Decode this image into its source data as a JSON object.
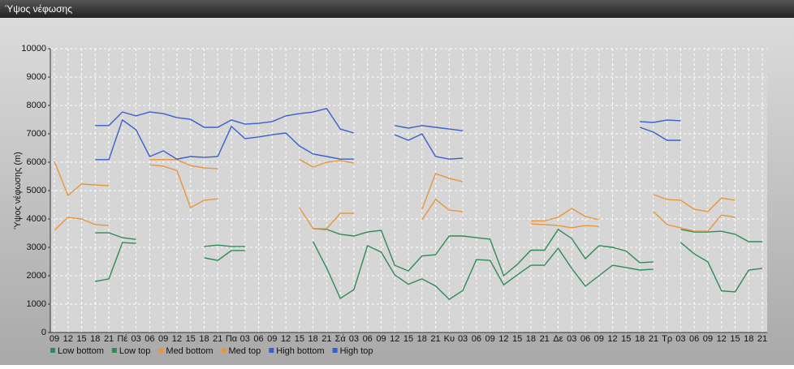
{
  "chart_data": {
    "type": "line",
    "title": "Ύψος νέφωσης",
    "ylabel": "Ύψος νέφωσης (m)",
    "categories": [
      "09",
      "12",
      "15",
      "18",
      "21",
      "Πέ",
      "03",
      "06",
      "09",
      "12",
      "15",
      "18",
      "21",
      "Πα",
      "03",
      "06",
      "09",
      "12",
      "15",
      "18",
      "21",
      "Σά",
      "03",
      "06",
      "09",
      "12",
      "15",
      "18",
      "21",
      "Κυ",
      "03",
      "06",
      "09",
      "12",
      "15",
      "18",
      "21",
      "Δε",
      "03",
      "06",
      "09",
      "12",
      "15",
      "18",
      "21",
      "Τρ",
      "03",
      "06",
      "09",
      "12",
      "15",
      "18",
      "21"
    ],
    "ylim": [
      0,
      10000
    ],
    "yticks": [
      0,
      1000,
      2000,
      3000,
      4000,
      5000,
      6000,
      7000,
      8000,
      9000,
      10000
    ],
    "grid": true,
    "series": [
      {
        "name": "Low bottom",
        "color": "#2e8b57",
        "values": [
          null,
          null,
          null,
          1800,
          1890,
          3170,
          3140,
          null,
          null,
          null,
          null,
          2630,
          2540,
          2890,
          2890,
          null,
          null,
          null,
          null,
          3200,
          2270,
          1200,
          1510,
          3060,
          2830,
          2030,
          1700,
          1890,
          1640,
          1170,
          1480,
          2570,
          2540,
          1680,
          2030,
          2370,
          2370,
          2970,
          2260,
          1630,
          2000,
          2370,
          2290,
          2200,
          2230,
          null,
          3170,
          2770,
          2490,
          1470,
          1430,
          2200,
          2260
        ]
      },
      {
        "name": "Low top",
        "color": "#2e8b57",
        "values": [
          null,
          null,
          null,
          3510,
          3510,
          3340,
          3280,
          null,
          null,
          null,
          null,
          3030,
          3080,
          3030,
          3030,
          null,
          null,
          null,
          null,
          3660,
          3630,
          3460,
          3400,
          3540,
          3600,
          2370,
          2170,
          2700,
          2740,
          3400,
          3400,
          3340,
          3290,
          2000,
          2400,
          2900,
          2900,
          3630,
          3310,
          2600,
          3060,
          3000,
          2870,
          2460,
          2490,
          null,
          3630,
          3540,
          3540,
          3570,
          3460,
          3200,
          3200
        ]
      },
      {
        "name": "Med bottom",
        "color": "#e8963c",
        "values": [
          3600,
          4060,
          4000,
          3800,
          3770,
          null,
          null,
          5910,
          5860,
          5710,
          4400,
          4660,
          4710,
          null,
          null,
          null,
          null,
          null,
          4400,
          3660,
          3660,
          4200,
          4200,
          null,
          null,
          null,
          null,
          3970,
          4690,
          4310,
          4260,
          null,
          null,
          null,
          null,
          3830,
          3800,
          3770,
          3690,
          3770,
          3740,
          null,
          null,
          null,
          4260,
          3800,
          3690,
          3570,
          3570,
          4140,
          4060,
          null,
          null
        ]
      },
      {
        "name": "Med top",
        "color": "#e8963c",
        "values": [
          6030,
          4830,
          5230,
          5200,
          5170,
          null,
          null,
          6090,
          6090,
          6090,
          5880,
          5800,
          5770,
          null,
          null,
          null,
          null,
          null,
          6100,
          5830,
          6000,
          6060,
          5970,
          null,
          null,
          null,
          null,
          4340,
          5600,
          5430,
          5310,
          null,
          null,
          null,
          null,
          3930,
          3930,
          4060,
          4370,
          4090,
          3970,
          null,
          null,
          null,
          4860,
          4690,
          4660,
          4340,
          4260,
          4740,
          4660,
          null,
          null
        ]
      },
      {
        "name": "High bottom",
        "color": "#3a5fcd",
        "values": [
          null,
          null,
          null,
          6090,
          6090,
          7490,
          7140,
          6200,
          6400,
          6110,
          6200,
          6170,
          6200,
          7260,
          6830,
          6890,
          6970,
          7030,
          6570,
          6290,
          6200,
          6110,
          6110,
          null,
          null,
          6970,
          6770,
          7000,
          6200,
          6110,
          6140,
          null,
          null,
          null,
          null,
          null,
          null,
          null,
          null,
          null,
          null,
          null,
          null,
          7230,
          7060,
          6770,
          6770,
          null,
          null,
          null,
          null,
          null,
          null
        ]
      },
      {
        "name": "High top",
        "color": "#3a5fcd",
        "values": [
          null,
          null,
          null,
          7290,
          7290,
          7770,
          7630,
          7770,
          7710,
          7570,
          7510,
          7230,
          7230,
          7490,
          7340,
          7370,
          7430,
          7630,
          7710,
          7770,
          7890,
          7170,
          7030,
          null,
          null,
          7290,
          7200,
          7290,
          7230,
          7170,
          7110,
          null,
          null,
          null,
          null,
          null,
          null,
          null,
          null,
          null,
          null,
          null,
          null,
          7430,
          7400,
          7490,
          7460,
          null,
          null,
          null,
          null,
          null,
          null
        ]
      }
    ]
  }
}
